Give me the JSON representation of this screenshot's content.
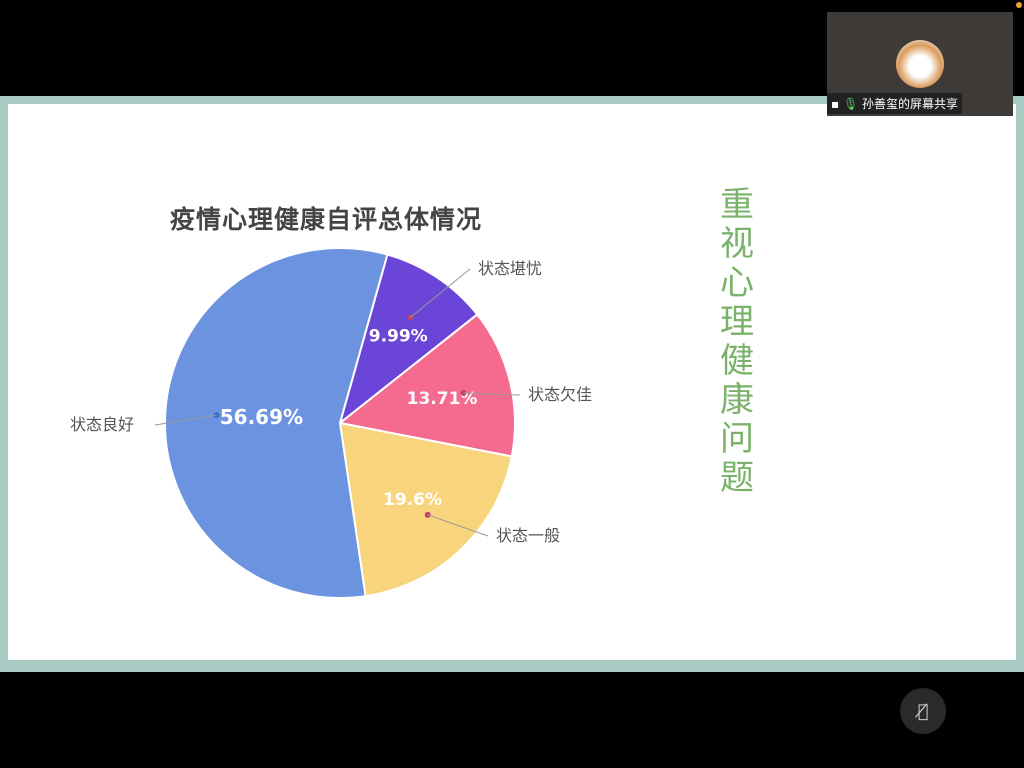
{
  "share": {
    "presenter_label": "孙善玺的屏幕共享",
    "mic_icon": "mic-icon",
    "screen_icon": "screen-share-icon"
  },
  "slide": {
    "side_title": "重视心理健康问题"
  },
  "chart_data": {
    "type": "pie",
    "title": "疫情心理健康自评总体情况",
    "slices": [
      {
        "label": "状态堪忧",
        "value": 9.99,
        "value_label": "9.99%",
        "color": "#6a45d8"
      },
      {
        "label": "状态欠佳",
        "value": 13.71,
        "value_label": "13.71%",
        "color": "#f46b8f"
      },
      {
        "label": "状态一般",
        "value": 19.6,
        "value_label": "19.6%",
        "color": "#f8d47c"
      },
      {
        "label": "状态良好",
        "value": 56.69,
        "value_label": "56.69%",
        "color": "#6b93e0"
      }
    ]
  },
  "controls": {
    "mic_muted_icon": "mic-muted-icon"
  }
}
